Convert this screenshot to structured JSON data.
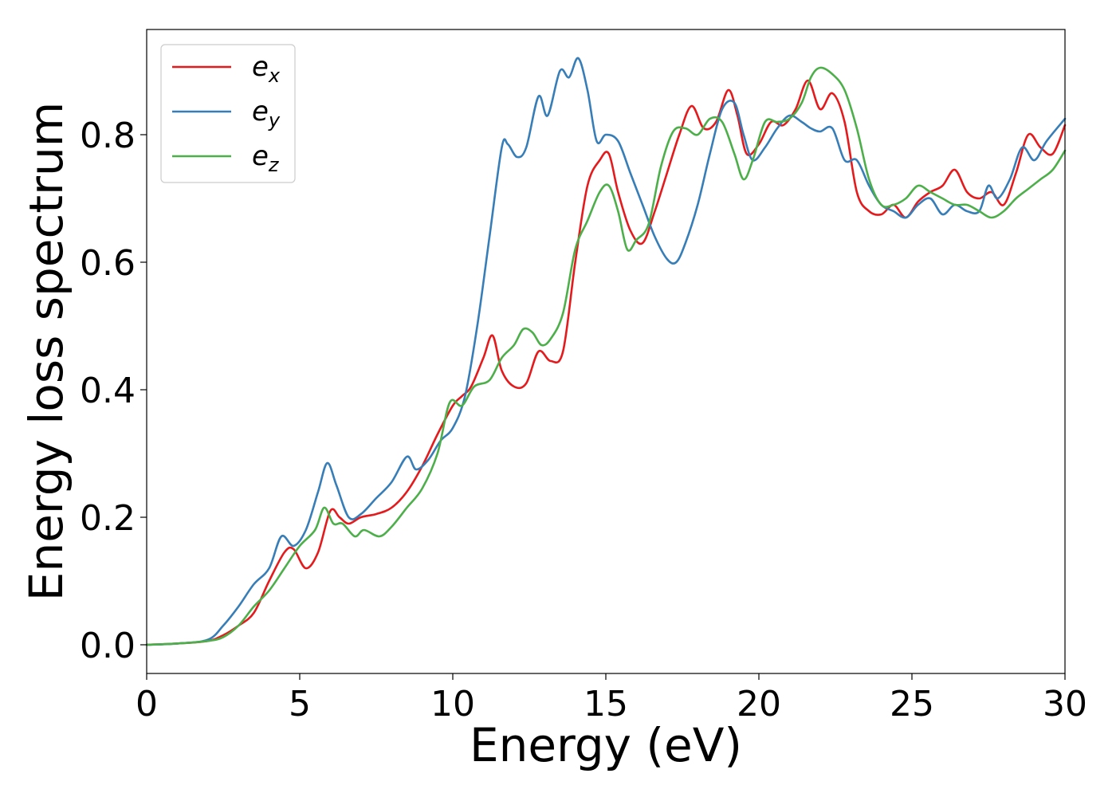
{
  "chart_data": {
    "type": "line",
    "title": "",
    "xlabel": "Energy (eV)",
    "ylabel": "Energy loss spectrum",
    "xlim": [
      0,
      30
    ],
    "ylim": [
      -0.045,
      0.965
    ],
    "xticks": [
      "0",
      "5",
      "10",
      "15",
      "20",
      "25",
      "30"
    ],
    "yticks": [
      "0.0",
      "0.2",
      "0.4",
      "0.6",
      "0.8"
    ],
    "grid": false,
    "legend_position": "top-left",
    "series": [
      {
        "name": "e",
        "subscript": "x",
        "color": "#e41a1c",
        "x": [
          0,
          1,
          2,
          2.5,
          3,
          3.5,
          4,
          4.5,
          4.8,
          5.2,
          5.6,
          6.0,
          6.3,
          6.6,
          7.0,
          7.5,
          8.0,
          8.5,
          9.0,
          9.5,
          10.0,
          10.3,
          10.6,
          11.0,
          11.3,
          11.6,
          12.0,
          12.4,
          12.8,
          13.2,
          13.6,
          14.0,
          14.4,
          14.8,
          15.1,
          15.4,
          15.8,
          16.2,
          16.6,
          17.0,
          17.4,
          17.8,
          18.2,
          18.6,
          19.0,
          19.3,
          19.6,
          20.0,
          20.4,
          20.8,
          21.2,
          21.6,
          22.0,
          22.4,
          22.8,
          23.2,
          23.6,
          24.0,
          24.4,
          24.8,
          25.2,
          25.6,
          26.0,
          26.4,
          26.8,
          27.2,
          27.6,
          28.0,
          28.4,
          28.8,
          29.2,
          29.6,
          30.0
        ],
        "y": [
          0.0,
          0.002,
          0.006,
          0.015,
          0.03,
          0.05,
          0.1,
          0.145,
          0.15,
          0.12,
          0.145,
          0.21,
          0.2,
          0.19,
          0.2,
          0.205,
          0.215,
          0.24,
          0.28,
          0.33,
          0.375,
          0.39,
          0.405,
          0.45,
          0.485,
          0.43,
          0.405,
          0.41,
          0.46,
          0.445,
          0.46,
          0.6,
          0.72,
          0.76,
          0.77,
          0.71,
          0.65,
          0.63,
          0.68,
          0.74,
          0.8,
          0.845,
          0.81,
          0.82,
          0.87,
          0.83,
          0.77,
          0.785,
          0.82,
          0.815,
          0.84,
          0.885,
          0.84,
          0.865,
          0.82,
          0.71,
          0.68,
          0.675,
          0.69,
          0.67,
          0.695,
          0.71,
          0.72,
          0.745,
          0.71,
          0.7,
          0.71,
          0.69,
          0.74,
          0.8,
          0.78,
          0.77,
          0.815
        ]
      },
      {
        "name": "e",
        "subscript": "y",
        "color": "#377eb8",
        "x": [
          0,
          1,
          2,
          2.5,
          3,
          3.5,
          4,
          4.4,
          4.8,
          5.2,
          5.6,
          5.9,
          6.2,
          6.6,
          7.0,
          7.5,
          8.0,
          8.5,
          8.8,
          9.2,
          9.6,
          10.0,
          10.4,
          10.8,
          11.2,
          11.6,
          11.8,
          12.1,
          12.4,
          12.8,
          13.1,
          13.5,
          13.8,
          14.1,
          14.4,
          14.7,
          15.0,
          15.4,
          15.8,
          16.2,
          16.6,
          17.0,
          17.3,
          17.6,
          18.0,
          18.4,
          18.8,
          19.2,
          19.5,
          19.8,
          20.2,
          20.6,
          21.0,
          21.4,
          21.7,
          22.0,
          22.4,
          22.8,
          23.2,
          23.6,
          24.0,
          24.4,
          24.8,
          25.2,
          25.6,
          26.0,
          26.4,
          26.8,
          27.2,
          27.5,
          27.8,
          28.2,
          28.6,
          29.0,
          29.4,
          30.0
        ],
        "y": [
          0.0,
          0.002,
          0.008,
          0.03,
          0.06,
          0.095,
          0.12,
          0.17,
          0.155,
          0.18,
          0.24,
          0.285,
          0.25,
          0.2,
          0.205,
          0.23,
          0.255,
          0.295,
          0.275,
          0.29,
          0.32,
          0.34,
          0.39,
          0.5,
          0.64,
          0.78,
          0.785,
          0.765,
          0.78,
          0.86,
          0.83,
          0.9,
          0.89,
          0.92,
          0.87,
          0.79,
          0.8,
          0.79,
          0.74,
          0.69,
          0.64,
          0.605,
          0.6,
          0.63,
          0.69,
          0.77,
          0.84,
          0.85,
          0.8,
          0.76,
          0.78,
          0.81,
          0.83,
          0.82,
          0.81,
          0.805,
          0.81,
          0.76,
          0.76,
          0.72,
          0.69,
          0.68,
          0.67,
          0.69,
          0.7,
          0.675,
          0.69,
          0.68,
          0.68,
          0.72,
          0.7,
          0.73,
          0.78,
          0.76,
          0.79,
          0.825
        ]
      },
      {
        "name": "e",
        "subscript": "z",
        "color": "#4daf4a",
        "x": [
          0,
          1,
          2,
          2.5,
          3,
          3.5,
          4,
          4.5,
          5.0,
          5.5,
          5.8,
          6.1,
          6.4,
          6.8,
          7.1,
          7.6,
          8.0,
          8.5,
          9.0,
          9.5,
          9.9,
          10.3,
          10.7,
          11.2,
          11.6,
          12.0,
          12.3,
          12.6,
          12.9,
          13.2,
          13.6,
          14.0,
          14.4,
          14.8,
          15.1,
          15.4,
          15.7,
          16.0,
          16.4,
          16.8,
          17.2,
          17.6,
          18.0,
          18.4,
          18.8,
          19.2,
          19.5,
          19.8,
          20.2,
          20.6,
          21.0,
          21.4,
          21.7,
          22.0,
          22.4,
          22.8,
          23.2,
          23.6,
          24.0,
          24.4,
          24.8,
          25.2,
          25.6,
          26.0,
          26.4,
          26.8,
          27.2,
          27.6,
          28.0,
          28.4,
          28.8,
          29.2,
          29.6,
          30.0
        ],
        "y": [
          0.0,
          0.002,
          0.006,
          0.012,
          0.03,
          0.06,
          0.085,
          0.12,
          0.155,
          0.18,
          0.215,
          0.19,
          0.19,
          0.17,
          0.18,
          0.17,
          0.185,
          0.215,
          0.245,
          0.3,
          0.38,
          0.375,
          0.405,
          0.415,
          0.45,
          0.47,
          0.495,
          0.49,
          0.47,
          0.48,
          0.52,
          0.62,
          0.665,
          0.71,
          0.72,
          0.68,
          0.62,
          0.635,
          0.66,
          0.75,
          0.805,
          0.81,
          0.8,
          0.825,
          0.82,
          0.77,
          0.73,
          0.76,
          0.82,
          0.82,
          0.825,
          0.85,
          0.89,
          0.905,
          0.895,
          0.87,
          0.81,
          0.73,
          0.69,
          0.69,
          0.7,
          0.72,
          0.71,
          0.7,
          0.69,
          0.69,
          0.68,
          0.67,
          0.68,
          0.7,
          0.715,
          0.73,
          0.745,
          0.775
        ]
      }
    ]
  }
}
